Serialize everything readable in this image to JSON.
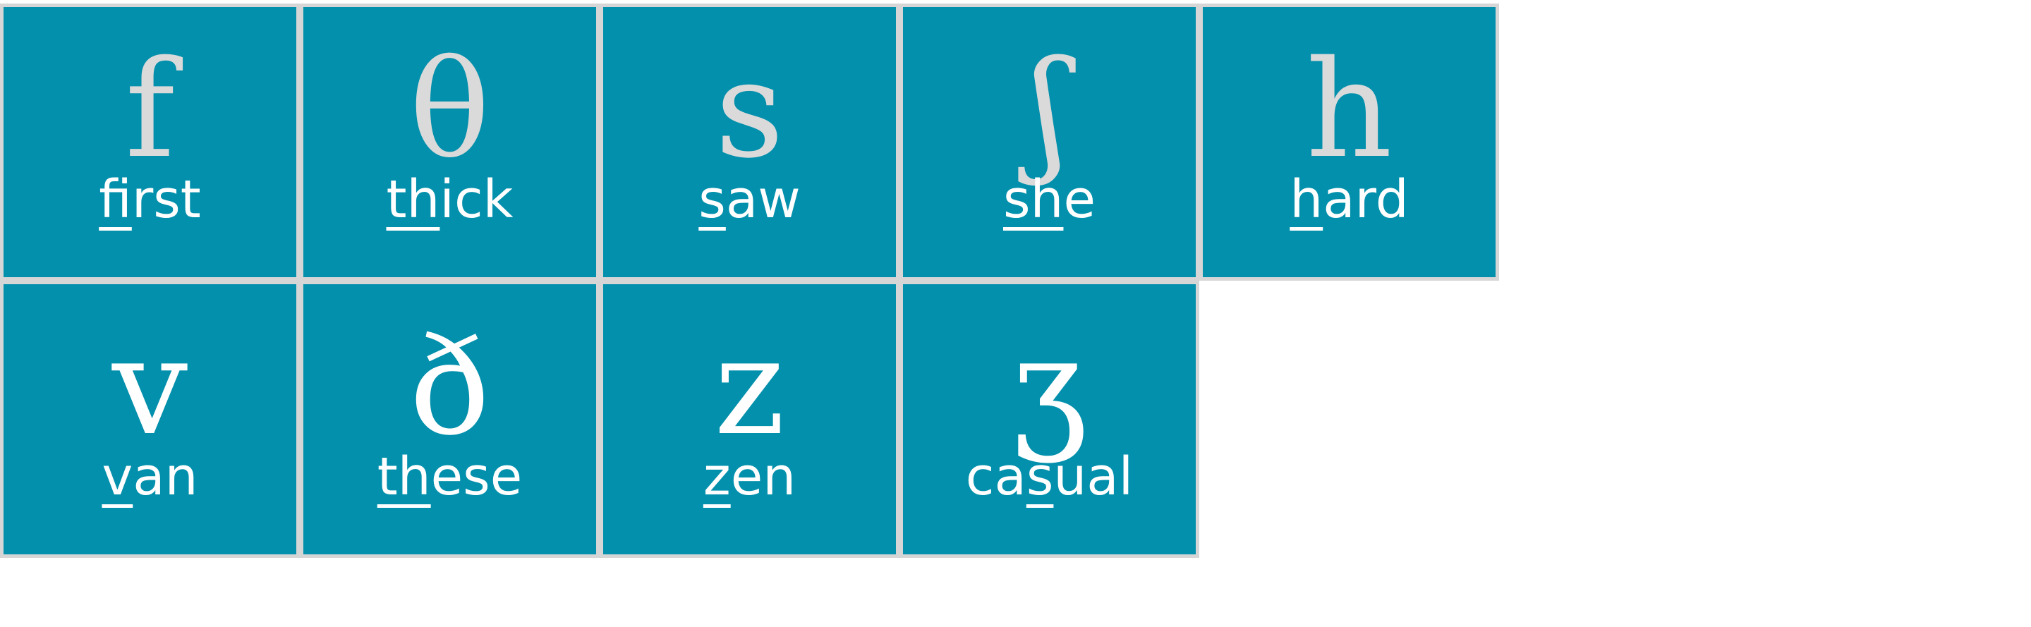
{
  "grid": {
    "colors": {
      "cell_background": "#0290ac",
      "border": "#d6d6d6",
      "word_text": "#ffffff",
      "symbol_light": "#dadada",
      "symbol_white": "#ffffff"
    },
    "row1": [
      {
        "symbol": "f",
        "pre": "",
        "underlined": "fi",
        "post": "rst"
      },
      {
        "symbol": "θ",
        "pre": "",
        "underlined": "th",
        "post": "ick"
      },
      {
        "symbol": "s",
        "pre": "",
        "underlined": "s",
        "post": "aw"
      },
      {
        "symbol": "ʃ",
        "pre": "",
        "underlined": "sh",
        "post": "e"
      },
      {
        "symbol": "h",
        "pre": "",
        "underlined": "h",
        "post": "ard"
      }
    ],
    "row2": [
      {
        "symbol": "v",
        "pre": "",
        "underlined": "v",
        "post": "an"
      },
      {
        "symbol": "ð",
        "pre": "",
        "underlined": "th",
        "post": "ese"
      },
      {
        "symbol": "z",
        "pre": "",
        "underlined": "z",
        "post": "en"
      },
      {
        "symbol": "ʒ",
        "pre": "ca",
        "underlined": "s",
        "post": "ual"
      }
    ]
  }
}
